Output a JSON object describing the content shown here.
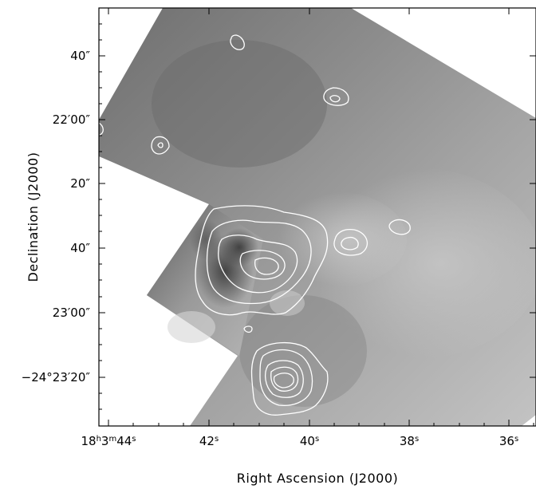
{
  "figure": {
    "xlabel": "Right Ascension (J2000)",
    "ylabel": "Declination (J2000)",
    "x_ticks": [
      {
        "h": "18",
        "m": "3",
        "s": "44"
      },
      {
        "s": "42"
      },
      {
        "s": "40"
      },
      {
        "s": "38"
      },
      {
        "s": "36"
      }
    ],
    "y_ticks": [
      {
        "main": "40",
        "sec": "″"
      },
      {
        "main": "22′00",
        "sec": "″"
      },
      {
        "main": "20",
        "sec": "″"
      },
      {
        "main": "40",
        "sec": "″"
      },
      {
        "main": "23′00",
        "sec": "″"
      },
      {
        "main": "−24°23′20",
        "sec": "″"
      }
    ]
  }
}
